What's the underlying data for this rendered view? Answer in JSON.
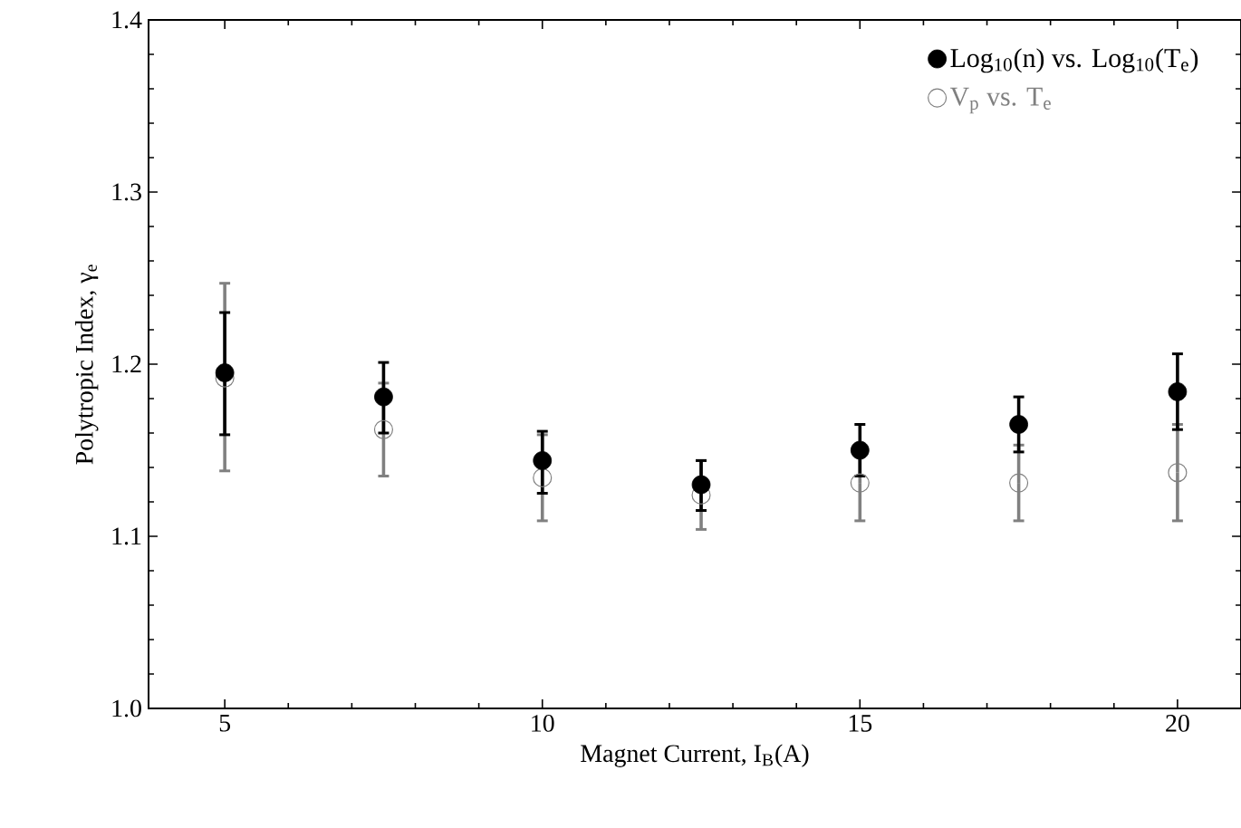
{
  "chart_data": {
    "type": "scatter",
    "xlabel": "Magnet Current, I$_{B}$(A)",
    "ylabel": "Polytropic Index, γ$_{e}$",
    "x": [
      5,
      7.5,
      10,
      12.5,
      15,
      17.5,
      20
    ],
    "series": [
      {
        "name": "Log$_{10}$(n) vs. Log$_{10}$(T$_{e}$)",
        "color": "#000000",
        "values": [
          1.195,
          1.181,
          1.144,
          1.13,
          1.15,
          1.165,
          1.184
        ],
        "errors": [
          [
            1.159,
            1.23
          ],
          [
            1.16,
            1.201
          ],
          [
            1.125,
            1.161
          ],
          [
            1.115,
            1.144
          ],
          [
            1.135,
            1.165
          ],
          [
            1.149,
            1.181
          ],
          [
            1.162,
            1.206
          ]
        ]
      },
      {
        "name": "V$_{p}$ vs. T$_{e}$",
        "color": "#808080",
        "values": [
          1.192,
          1.162,
          1.134,
          1.124,
          1.131,
          1.131,
          1.137
        ],
        "errors": [
          [
            1.138,
            1.247
          ],
          0.027,
          0.025,
          0.02,
          0.022,
          0.022,
          0.028
        ]
      }
    ],
    "xlim": [
      3.8,
      21
    ],
    "ylim": [
      1.0,
      1.4
    ],
    "xticks": [
      5,
      10,
      15,
      20
    ],
    "yticks": [
      {
        "value": 1.0,
        "label": "1.0"
      },
      {
        "value": 1.1,
        "label": "1.1"
      },
      {
        "value": 1.2,
        "label": "1.2"
      },
      {
        "value": 1.3,
        "label": "1.3"
      },
      {
        "value": 1.4,
        "label": "1.4"
      }
    ],
    "legend": "top right",
    "marker": "circle",
    "grid": false
  }
}
